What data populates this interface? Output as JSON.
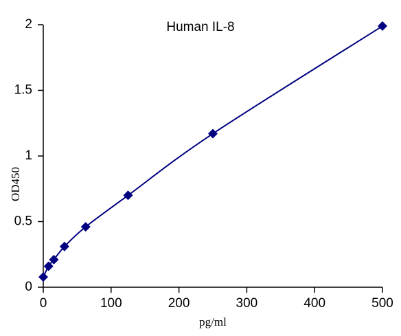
{
  "chart_data": {
    "type": "line",
    "title": "Human IL-8",
    "x_label": "pg/ml",
    "y_label": "OD450",
    "x": [
      0,
      7.8,
      15.6,
      31.25,
      62.5,
      125,
      250,
      500
    ],
    "values": [
      0.078,
      0.16,
      0.21,
      0.31,
      0.46,
      0.7,
      1.17,
      1.99
    ],
    "color": "#000080",
    "smooth": true,
    "markers": "diamond",
    "xlim": [
      0,
      500
    ],
    "xticks": [
      0,
      100,
      200,
      300,
      400,
      500
    ],
    "ylim": [
      0,
      2
    ],
    "yticks": [
      0,
      0.5,
      1,
      1.5,
      2
    ],
    "grid": false
  }
}
